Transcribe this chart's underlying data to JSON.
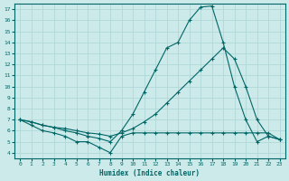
{
  "background_color": "#cdeaea",
  "grid_color": "#b0d8d8",
  "line_color": "#006666",
  "xlabel": "Humidex (Indice chaleur)",
  "xlim": [
    -0.5,
    23.5
  ],
  "ylim": [
    3.5,
    17.5
  ],
  "xticks": [
    0,
    1,
    2,
    3,
    4,
    5,
    6,
    7,
    8,
    9,
    10,
    11,
    12,
    13,
    14,
    15,
    16,
    17,
    18,
    19,
    20,
    21,
    22,
    23
  ],
  "yticks": [
    4,
    5,
    6,
    7,
    8,
    9,
    10,
    11,
    12,
    13,
    14,
    15,
    16,
    17
  ],
  "series": [
    {
      "x": [
        0,
        1,
        2,
        3,
        4,
        5,
        6,
        7,
        8,
        9,
        10,
        11,
        12,
        13,
        14,
        15,
        16,
        17,
        18,
        19,
        20,
        21,
        22,
        23
      ],
      "y": [
        7,
        6.5,
        6,
        5.8,
        5.5,
        5.0,
        5.0,
        4.5,
        4.0,
        5.5,
        5.8,
        5.8,
        5.8,
        5.8,
        5.8,
        5.8,
        5.8,
        5.8,
        5.8,
        5.8,
        5.8,
        5.8,
        5.8,
        5.2
      ]
    },
    {
      "x": [
        0,
        1,
        2,
        3,
        4,
        5,
        6,
        7,
        8,
        9,
        10,
        11,
        12,
        13,
        14,
        15,
        16,
        17,
        18,
        19,
        20,
        21,
        22,
        23
      ],
      "y": [
        7,
        6.8,
        6.5,
        6.3,
        6.2,
        6.0,
        5.8,
        5.7,
        5.5,
        5.8,
        6.2,
        6.8,
        7.5,
        8.5,
        9.5,
        10.5,
        11.5,
        12.5,
        13.5,
        12.5,
        10.0,
        7.0,
        5.5,
        5.2
      ]
    },
    {
      "x": [
        0,
        1,
        2,
        3,
        4,
        5,
        6,
        7,
        8,
        9,
        10,
        11,
        12,
        13,
        14,
        15,
        16,
        17,
        18,
        19,
        20,
        21,
        22,
        23
      ],
      "y": [
        7,
        6.8,
        6.5,
        6.3,
        6.0,
        5.8,
        5.5,
        5.3,
        5.0,
        6.0,
        7.5,
        9.5,
        11.5,
        13.5,
        14.0,
        16.0,
        17.2,
        17.3,
        14.0,
        10.0,
        7.0,
        5.0,
        5.5,
        5.2
      ]
    }
  ]
}
